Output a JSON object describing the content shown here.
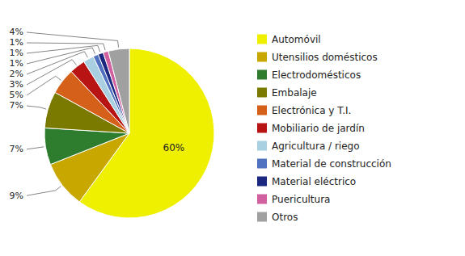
{
  "chart_data": {
    "type": "pie",
    "categories": [
      "Automóvil",
      "Utensilios domésticos",
      "Electrodomésticos",
      "Embalaje",
      "Electrónica y T.I.",
      "Mobiliario de jardín",
      "Agricultura / riego",
      "Material de construcción",
      "Material eléctrico",
      "Puericultura",
      "Otros"
    ],
    "values": [
      60,
      9,
      7,
      7,
      5,
      3,
      2,
      1,
      1,
      1,
      4
    ],
    "value_labels": [
      "60%",
      "9%",
      "7%",
      "7%",
      "5%",
      "3%",
      "2%",
      "1%",
      "1%",
      "1%",
      "4%"
    ],
    "colors": [
      "#EFEF00",
      "#C8A800",
      "#2E7D2E",
      "#7A7A00",
      "#D4601A",
      "#B81414",
      "#A8D0E0",
      "#5070C0",
      "#1C2880",
      "#D060A0",
      "#A0A0A0"
    ],
    "data_labels": true,
    "legend": "right"
  }
}
